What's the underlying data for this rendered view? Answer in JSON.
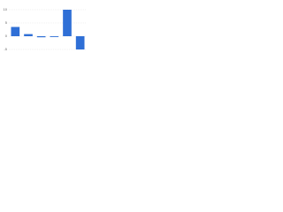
{
  "chart_data": {
    "type": "bar",
    "categories": [
      null,
      null,
      null,
      null,
      null,
      null
    ],
    "values": [
      3.5,
      0.8,
      -0.4,
      -0.3,
      10,
      -5
    ],
    "color": "#2f6fd6",
    "ylim": [
      -7,
      12
    ],
    "yticks": [
      -5,
      0,
      5,
      10
    ],
    "grid": true
  }
}
